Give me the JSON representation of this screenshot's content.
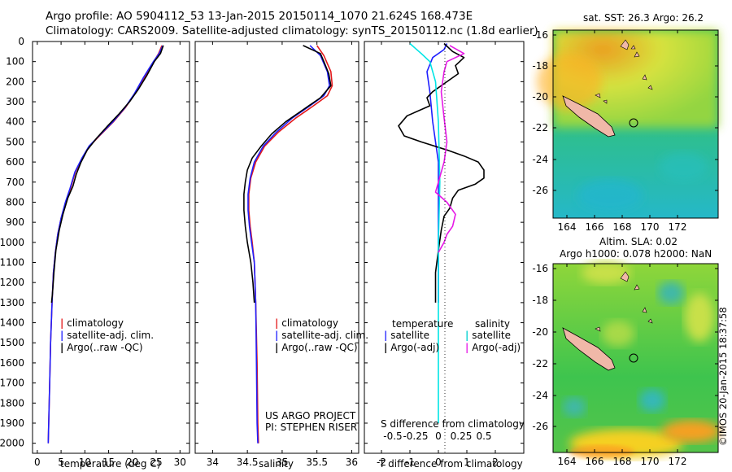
{
  "header": {
    "line1": "Argo profile: AO 5904112_53 13-Jan-2015 20150114_1070 21.624S 168.473E",
    "line2": "Climatology: CARS2009. Satellite-adjusted climatology: synTS_20150112.nc (1.8d earlier)"
  },
  "side_label": "©IMOS 20-Jan-2015 18:37:58",
  "colors": {
    "climatology": "#e41a1c",
    "satellite": "#1f1fff",
    "argo": "#000000",
    "cyan": "#00e5e5",
    "magenta": "#e619e6"
  },
  "chart_data": [
    {
      "type": "line",
      "id": "temperature",
      "xlabel": "temperature (deg C)",
      "ylabel": "",
      "xlim": [
        -1,
        32
      ],
      "ylim": [
        2050,
        0
      ],
      "xticks": [
        0,
        5,
        10,
        15,
        20,
        25,
        30
      ],
      "yticks": [
        0,
        100,
        200,
        300,
        400,
        500,
        600,
        700,
        800,
        900,
        1000,
        1100,
        1200,
        1300,
        1400,
        1500,
        1600,
        1700,
        1800,
        1900,
        2000
      ],
      "legend": [
        "climatology",
        "satellite-adj. clim.",
        "Argo(..raw -QC)"
      ],
      "series": [
        {
          "name": "climatology",
          "color": "#e41a1c",
          "points": [
            [
              26.2,
              20
            ],
            [
              25.5,
              60
            ],
            [
              24.5,
              100
            ],
            [
              22.5,
              180
            ],
            [
              20.5,
              260
            ],
            [
              18.5,
              330
            ],
            [
              16,
              400
            ],
            [
              13.5,
              460
            ],
            [
              11,
              520
            ],
            [
              9.5,
              580
            ],
            [
              8,
              650
            ],
            [
              7,
              730
            ],
            [
              6,
              800
            ],
            [
              5,
              880
            ],
            [
              4.3,
              960
            ],
            [
              3.8,
              1050
            ],
            [
              3.4,
              1150
            ],
            [
              3.1,
              1300
            ],
            [
              2.8,
              1500
            ],
            [
              2.6,
              1700
            ],
            [
              2.4,
              1900
            ],
            [
              2.3,
              2000
            ]
          ]
        },
        {
          "name": "satellite-adj. clim.",
          "color": "#1f1fff",
          "points": [
            [
              26.4,
              20
            ],
            [
              25.6,
              60
            ],
            [
              24.4,
              100
            ],
            [
              22.3,
              180
            ],
            [
              20.4,
              260
            ],
            [
              18.4,
              330
            ],
            [
              15.9,
              400
            ],
            [
              13.4,
              460
            ],
            [
              10.9,
              520
            ],
            [
              9.4,
              580
            ],
            [
              7.9,
              650
            ],
            [
              6.9,
              730
            ],
            [
              5.9,
              800
            ],
            [
              5,
              880
            ],
            [
              4.3,
              960
            ],
            [
              3.8,
              1050
            ],
            [
              3.4,
              1150
            ],
            [
              3.1,
              1300
            ],
            [
              2.8,
              1500
            ],
            [
              2.6,
              1700
            ],
            [
              2.4,
              1900
            ],
            [
              2.3,
              2000
            ]
          ]
        },
        {
          "name": "Argo",
          "color": "#000000",
          "points": [
            [
              26.5,
              20
            ],
            [
              25.9,
              60
            ],
            [
              24.6,
              100
            ],
            [
              23,
              170
            ],
            [
              21.2,
              240
            ],
            [
              19.4,
              300
            ],
            [
              17.2,
              360
            ],
            [
              14.8,
              420
            ],
            [
              12.5,
              480
            ],
            [
              10.5,
              540
            ],
            [
              9.2,
              600
            ],
            [
              8.2,
              660
            ],
            [
              7.5,
              720
            ],
            [
              6.4,
              780
            ],
            [
              5.4,
              860
            ],
            [
              4.6,
              940
            ],
            [
              3.9,
              1040
            ],
            [
              3.5,
              1150
            ],
            [
              3.2,
              1250
            ],
            [
              3,
              1300
            ]
          ]
        }
      ]
    },
    {
      "type": "line",
      "id": "salinity",
      "xlabel": "salinity",
      "xlim": [
        33.75,
        36.1
      ],
      "ylim": [
        2050,
        0
      ],
      "xticks": [
        34,
        34.5,
        35,
        35.5,
        36
      ],
      "legend": [
        "climatology",
        "satellite-adj. clim.",
        "Argo(..raw -QC)"
      ],
      "annotation": [
        "US ARGO PROJECT",
        "PI: STEPHEN RISER"
      ],
      "series": [
        {
          "name": "climatology",
          "color": "#e41a1c",
          "points": [
            [
              35.5,
              20
            ],
            [
              35.6,
              70
            ],
            [
              35.7,
              150
            ],
            [
              35.72,
              220
            ],
            [
              35.65,
              270
            ],
            [
              35.45,
              320
            ],
            [
              35.2,
              380
            ],
            [
              34.95,
              450
            ],
            [
              34.75,
              520
            ],
            [
              34.62,
              600
            ],
            [
              34.55,
              680
            ],
            [
              34.52,
              760
            ],
            [
              34.52,
              840
            ],
            [
              34.54,
              920
            ],
            [
              34.57,
              1000
            ],
            [
              34.6,
              1100
            ],
            [
              34.62,
              1300
            ],
            [
              34.64,
              1600
            ],
            [
              34.65,
              1900
            ],
            [
              34.66,
              2000
            ]
          ]
        },
        {
          "name": "satellite-adj. clim.",
          "color": "#1f1fff",
          "points": [
            [
              35.4,
              20
            ],
            [
              35.55,
              70
            ],
            [
              35.65,
              150
            ],
            [
              35.68,
              220
            ],
            [
              35.6,
              270
            ],
            [
              35.4,
              320
            ],
            [
              35.15,
              380
            ],
            [
              34.92,
              450
            ],
            [
              34.73,
              520
            ],
            [
              34.6,
              600
            ],
            [
              34.54,
              680
            ],
            [
              34.51,
              760
            ],
            [
              34.51,
              840
            ],
            [
              34.53,
              920
            ],
            [
              34.56,
              1000
            ],
            [
              34.6,
              1100
            ],
            [
              34.62,
              1300
            ],
            [
              34.63,
              1600
            ],
            [
              34.64,
              1900
            ],
            [
              34.65,
              2000
            ]
          ]
        },
        {
          "name": "Argo",
          "color": "#000000",
          "points": [
            [
              35.3,
              20
            ],
            [
              35.55,
              60
            ],
            [
              35.6,
              100
            ],
            [
              35.67,
              160
            ],
            [
              35.7,
              220
            ],
            [
              35.55,
              280
            ],
            [
              35.3,
              340
            ],
            [
              35.05,
              400
            ],
            [
              34.85,
              460
            ],
            [
              34.7,
              520
            ],
            [
              34.57,
              580
            ],
            [
              34.5,
              640
            ],
            [
              34.47,
              700
            ],
            [
              34.45,
              760
            ],
            [
              34.45,
              840
            ],
            [
              34.47,
              920
            ],
            [
              34.5,
              1000
            ],
            [
              34.55,
              1100
            ],
            [
              34.58,
              1200
            ],
            [
              34.6,
              1300
            ]
          ]
        }
      ]
    },
    {
      "type": "line",
      "id": "difference",
      "xlabel": "T difference from climatology",
      "xlabel_top": "S difference from climatology",
      "xlim": [
        -2.6,
        3.0
      ],
      "ylim": [
        2050,
        0
      ],
      "xticks": [
        -2,
        -1,
        0,
        1,
        2
      ],
      "xticks_top": [
        {
          "v": -1.6,
          "t": "-0.5"
        },
        {
          "v": -0.8,
          "t": "-0.25"
        },
        {
          "v": 0,
          "t": "0"
        },
        {
          "v": 0.8,
          "t": "0.25"
        },
        {
          "v": 1.6,
          "t": "0.5"
        }
      ],
      "legend_left": {
        "title": "temperature",
        "items": [
          "satellite",
          "Argo(-adj)"
        ]
      },
      "legend_right": {
        "title": "salinity",
        "items": [
          "satellite",
          "Argo(-adj)"
        ]
      },
      "series": [
        {
          "name": "T satellite",
          "color": "#1f1fff",
          "points": [
            [
              0.3,
              10
            ],
            [
              0.2,
              40
            ],
            [
              -0.2,
              80
            ],
            [
              -0.4,
              150
            ],
            [
              -0.3,
              250
            ],
            [
              -0.2,
              400
            ],
            [
              -0.1,
              500
            ],
            [
              0,
              600
            ],
            [
              0,
              800
            ],
            [
              0,
              1100
            ],
            [
              0,
              1300
            ]
          ]
        },
        {
          "name": "T Argo",
          "color": "#000000",
          "points": [
            [
              0.2,
              10
            ],
            [
              0.5,
              50
            ],
            [
              0.9,
              80
            ],
            [
              0.6,
              120
            ],
            [
              0.7,
              160
            ],
            [
              0.3,
              200
            ],
            [
              -0.2,
              250
            ],
            [
              -0.4,
              280
            ],
            [
              -0.3,
              320
            ],
            [
              -1.1,
              370
            ],
            [
              -1.4,
              420
            ],
            [
              -1.2,
              470
            ],
            [
              -0.6,
              500
            ],
            [
              0.3,
              540
            ],
            [
              0.9,
              570
            ],
            [
              1.4,
              600
            ],
            [
              1.6,
              640
            ],
            [
              1.6,
              680
            ],
            [
              1.3,
              710
            ],
            [
              0.7,
              740
            ],
            [
              0.5,
              780
            ],
            [
              0.4,
              830
            ],
            [
              0.2,
              870
            ],
            [
              0.1,
              940
            ],
            [
              0,
              1040
            ],
            [
              -0.1,
              1150
            ],
            [
              -0.1,
              1300
            ]
          ]
        },
        {
          "name": "S satellite",
          "color": "#00e5e5",
          "points": [
            [
              -1.0,
              10
            ],
            [
              -0.6,
              60
            ],
            [
              -0.3,
              100
            ],
            [
              -0.1,
              200
            ],
            [
              0,
              400
            ],
            [
              0.05,
              700
            ],
            [
              0,
              1000
            ],
            [
              0,
              1500
            ],
            [
              0,
              1900
            ]
          ]
        },
        {
          "name": "S Argo",
          "color": "#e619e6",
          "points": [
            [
              0.4,
              20
            ],
            [
              0.9,
              60
            ],
            [
              0.3,
              100
            ],
            [
              0.2,
              150
            ],
            [
              0.1,
              250
            ],
            [
              0.2,
              380
            ],
            [
              0.3,
              500
            ],
            [
              0.2,
              600
            ],
            [
              0,
              700
            ],
            [
              -0.1,
              750
            ],
            [
              0.3,
              800
            ],
            [
              0.6,
              860
            ],
            [
              0.5,
              920
            ],
            [
              0.3,
              960
            ],
            [
              0.2,
              1000
            ],
            [
              0,
              1050
            ]
          ]
        }
      ]
    }
  ],
  "maps": [
    {
      "id": "sst_map",
      "title": "sat. SST: 26.3  Argo: 26.2",
      "subtitle": "",
      "lon_ticks": [
        "164",
        "166",
        "168",
        "170",
        "172"
      ],
      "lat_ticks": [
        "-16",
        "-18",
        "-20",
        "-22",
        "-24",
        "-26"
      ]
    },
    {
      "id": "sla_map",
      "title": "Altim. SLA: 0.02",
      "subtitle": "Argo h1000: 0.078  h2000: NaN",
      "lon_ticks": [
        "164",
        "166",
        "168",
        "170",
        "172"
      ],
      "lat_ticks": [
        "-16",
        "-18",
        "-20",
        "-22",
        "-24",
        "-26"
      ]
    }
  ]
}
